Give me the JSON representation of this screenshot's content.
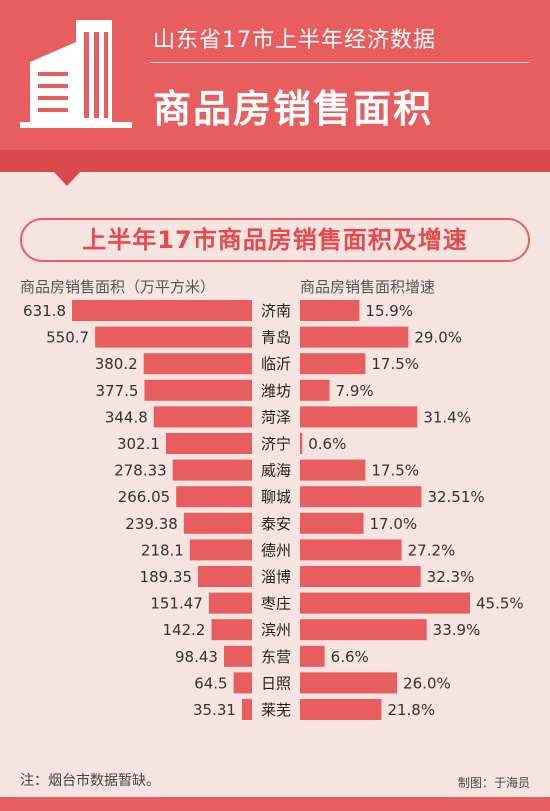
{
  "header": {
    "subtitle": "山东省17市上半年经济数据",
    "title": "商品房销售面积"
  },
  "chart_title": "上半年17市商品房销售面积及增速",
  "chart_data": {
    "type": "bar",
    "title": "上半年17市商品房销售面积及增速",
    "categories": [
      "济南",
      "青岛",
      "临沂",
      "潍坊",
      "菏泽",
      "济宁",
      "威海",
      "聊城",
      "泰安",
      "德州",
      "淄博",
      "枣庄",
      "滨州",
      "东营",
      "日照",
      "莱芜"
    ],
    "series": [
      {
        "name": "商品房销售面积（万平方米）",
        "values": [
          631.8,
          550.7,
          380.2,
          377.5,
          344.8,
          302.1,
          278.33,
          266.05,
          239.38,
          218.1,
          189.35,
          151.47,
          142.2,
          98.43,
          64.5,
          35.31
        ],
        "labels": [
          "631.8",
          "550.7",
          "380.2",
          "377.5",
          "344.8",
          "302.1",
          "278.33",
          "266.05",
          "239.38",
          "218.1",
          "189.35",
          "151.47",
          "142.2",
          "98.43",
          "64.5",
          "35.31"
        ]
      },
      {
        "name": "商品房销售面积增速",
        "values": [
          15.9,
          29.0,
          17.5,
          7.9,
          31.4,
          0.6,
          17.5,
          32.51,
          17.0,
          27.2,
          32.3,
          45.5,
          33.9,
          6.6,
          26.0,
          21.8
        ],
        "labels": [
          "15.9%",
          "29.0%",
          "17.5%",
          "7.9%",
          "31.4%",
          "0.6%",
          "17.5%",
          "32.51%",
          "17.0%",
          "27.2%",
          "32.3%",
          "45.5%",
          "33.9%",
          "6.6%",
          "26.0%",
          "21.8%"
        ]
      }
    ],
    "bar_color": "#e85d5e"
  },
  "footnote": "注：烟台市数据暂缺。",
  "credit": "制图：于海员"
}
